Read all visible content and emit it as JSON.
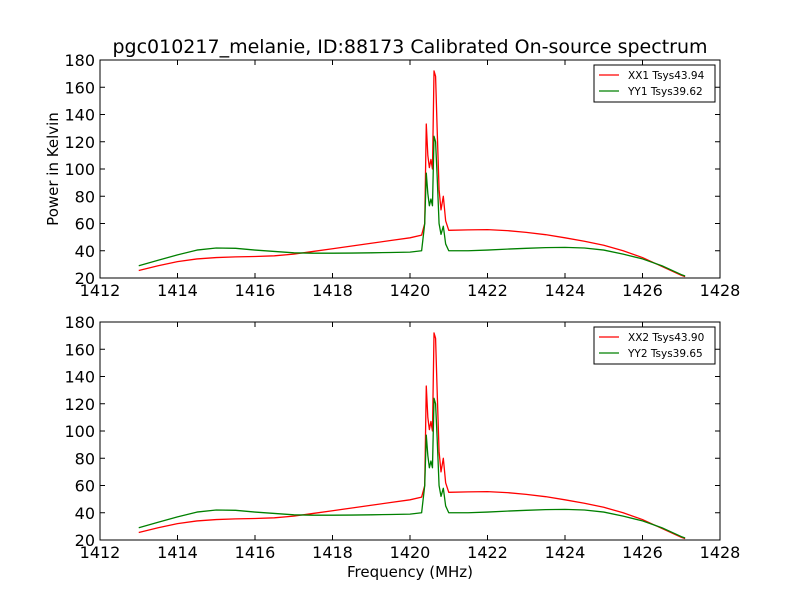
{
  "title": "pgc010217_melanie, ID:88173 Calibrated On-source spectrum",
  "chart_data": [
    {
      "type": "line",
      "xlabel": "",
      "ylabel": "Power in Kelvin",
      "xlim": [
        1412,
        1428
      ],
      "ylim": [
        20,
        180
      ],
      "xticks": [
        1412,
        1414,
        1416,
        1418,
        1420,
        1422,
        1424,
        1426,
        1428
      ],
      "yticks": [
        20,
        40,
        60,
        80,
        100,
        120,
        140,
        160,
        180
      ],
      "legend_position": "top-right",
      "series": [
        {
          "name": "XX1 Tsys43.94",
          "color": "#ff0000",
          "points": [
            [
              1413.0,
              25.5
            ],
            [
              1413.5,
              29.0
            ],
            [
              1414.0,
              32.0
            ],
            [
              1414.5,
              34.0
            ],
            [
              1415.0,
              35.0
            ],
            [
              1415.5,
              35.5
            ],
            [
              1416.0,
              35.8
            ],
            [
              1416.5,
              36.3
            ],
            [
              1417.0,
              37.5
            ],
            [
              1417.5,
              39.5
            ],
            [
              1418.0,
              41.5
            ],
            [
              1418.5,
              43.5
            ],
            [
              1419.0,
              45.5
            ],
            [
              1419.5,
              47.5
            ],
            [
              1420.0,
              49.5
            ],
            [
              1420.3,
              51.5
            ],
            [
              1420.38,
              60
            ],
            [
              1420.42,
              133
            ],
            [
              1420.46,
              110
            ],
            [
              1420.5,
              101
            ],
            [
              1420.54,
              107
            ],
            [
              1420.58,
              100
            ],
            [
              1420.62,
              172
            ],
            [
              1420.66,
              168
            ],
            [
              1420.7,
              130
            ],
            [
              1420.75,
              85
            ],
            [
              1420.8,
              70
            ],
            [
              1420.86,
              80
            ],
            [
              1420.92,
              62
            ],
            [
              1421.0,
              55
            ],
            [
              1421.5,
              55.3
            ],
            [
              1422.0,
              55.5
            ],
            [
              1422.5,
              54.8
            ],
            [
              1423.0,
              53.5
            ],
            [
              1423.5,
              51.8
            ],
            [
              1424.0,
              49.5
            ],
            [
              1424.5,
              47.0
            ],
            [
              1425.0,
              44.0
            ],
            [
              1425.5,
              40.0
            ],
            [
              1426.0,
              35.0
            ],
            [
              1426.5,
              28.5
            ],
            [
              1427.0,
              22.0
            ],
            [
              1427.1,
              21.0
            ]
          ]
        },
        {
          "name": "YY1 Tsys39.62",
          "color": "#008000",
          "points": [
            [
              1413.0,
              29.0
            ],
            [
              1413.5,
              33.0
            ],
            [
              1414.0,
              37.0
            ],
            [
              1414.5,
              40.5
            ],
            [
              1415.0,
              42.0
            ],
            [
              1415.5,
              41.8
            ],
            [
              1416.0,
              40.5
            ],
            [
              1416.5,
              39.5
            ],
            [
              1417.0,
              38.5
            ],
            [
              1417.5,
              38.2
            ],
            [
              1418.0,
              38.2
            ],
            [
              1418.5,
              38.3
            ],
            [
              1419.0,
              38.5
            ],
            [
              1419.5,
              38.7
            ],
            [
              1420.0,
              39.0
            ],
            [
              1420.3,
              40.0
            ],
            [
              1420.38,
              60
            ],
            [
              1420.42,
              97
            ],
            [
              1420.46,
              82
            ],
            [
              1420.5,
              73
            ],
            [
              1420.54,
              78
            ],
            [
              1420.58,
              73
            ],
            [
              1420.62,
              124
            ],
            [
              1420.66,
              120
            ],
            [
              1420.7,
              95
            ],
            [
              1420.75,
              60
            ],
            [
              1420.8,
              52
            ],
            [
              1420.86,
              58
            ],
            [
              1420.92,
              45
            ],
            [
              1421.0,
              40.0
            ],
            [
              1421.5,
              40.0
            ],
            [
              1422.0,
              40.5
            ],
            [
              1422.5,
              41.2
            ],
            [
              1423.0,
              41.8
            ],
            [
              1423.5,
              42.3
            ],
            [
              1424.0,
              42.5
            ],
            [
              1424.5,
              42.0
            ],
            [
              1425.0,
              40.5
            ],
            [
              1425.5,
              37.5
            ],
            [
              1426.0,
              34.0
            ],
            [
              1426.5,
              29.0
            ],
            [
              1427.0,
              22.5
            ],
            [
              1427.1,
              21.5
            ]
          ]
        }
      ]
    },
    {
      "type": "line",
      "xlabel": "Frequency (MHz)",
      "ylabel": "",
      "xlim": [
        1412,
        1428
      ],
      "ylim": [
        20,
        180
      ],
      "xticks": [
        1412,
        1414,
        1416,
        1418,
        1420,
        1422,
        1424,
        1426,
        1428
      ],
      "yticks": [
        20,
        40,
        60,
        80,
        100,
        120,
        140,
        160,
        180
      ],
      "legend_position": "top-right",
      "series": [
        {
          "name": "XX2 Tsys43.90",
          "color": "#ff0000",
          "points": [
            [
              1413.0,
              25.5
            ],
            [
              1413.5,
              29.0
            ],
            [
              1414.0,
              32.0
            ],
            [
              1414.5,
              34.0
            ],
            [
              1415.0,
              35.0
            ],
            [
              1415.5,
              35.5
            ],
            [
              1416.0,
              35.8
            ],
            [
              1416.5,
              36.3
            ],
            [
              1417.0,
              37.5
            ],
            [
              1417.5,
              39.5
            ],
            [
              1418.0,
              41.5
            ],
            [
              1418.5,
              43.5
            ],
            [
              1419.0,
              45.5
            ],
            [
              1419.5,
              47.5
            ],
            [
              1420.0,
              49.5
            ],
            [
              1420.3,
              51.5
            ],
            [
              1420.38,
              60
            ],
            [
              1420.42,
              133
            ],
            [
              1420.46,
              110
            ],
            [
              1420.5,
              101
            ],
            [
              1420.54,
              107
            ],
            [
              1420.58,
              100
            ],
            [
              1420.62,
              172
            ],
            [
              1420.66,
              168
            ],
            [
              1420.7,
              130
            ],
            [
              1420.75,
              85
            ],
            [
              1420.8,
              70
            ],
            [
              1420.86,
              80
            ],
            [
              1420.92,
              62
            ],
            [
              1421.0,
              55
            ],
            [
              1421.5,
              55.3
            ],
            [
              1422.0,
              55.5
            ],
            [
              1422.5,
              54.8
            ],
            [
              1423.0,
              53.5
            ],
            [
              1423.5,
              51.8
            ],
            [
              1424.0,
              49.5
            ],
            [
              1424.5,
              47.0
            ],
            [
              1425.0,
              44.0
            ],
            [
              1425.5,
              40.0
            ],
            [
              1426.0,
              35.0
            ],
            [
              1426.5,
              28.5
            ],
            [
              1427.0,
              22.0
            ],
            [
              1427.1,
              21.0
            ]
          ]
        },
        {
          "name": "YY2 Tsys39.65",
          "color": "#008000",
          "points": [
            [
              1413.0,
              29.0
            ],
            [
              1413.5,
              33.0
            ],
            [
              1414.0,
              37.0
            ],
            [
              1414.5,
              40.5
            ],
            [
              1415.0,
              42.0
            ],
            [
              1415.5,
              41.8
            ],
            [
              1416.0,
              40.5
            ],
            [
              1416.5,
              39.5
            ],
            [
              1417.0,
              38.5
            ],
            [
              1417.5,
              38.2
            ],
            [
              1418.0,
              38.2
            ],
            [
              1418.5,
              38.3
            ],
            [
              1419.0,
              38.5
            ],
            [
              1419.5,
              38.7
            ],
            [
              1420.0,
              39.0
            ],
            [
              1420.3,
              40.0
            ],
            [
              1420.38,
              60
            ],
            [
              1420.42,
              97
            ],
            [
              1420.46,
              82
            ],
            [
              1420.5,
              73
            ],
            [
              1420.54,
              78
            ],
            [
              1420.58,
              73
            ],
            [
              1420.62,
              124
            ],
            [
              1420.66,
              120
            ],
            [
              1420.7,
              95
            ],
            [
              1420.75,
              60
            ],
            [
              1420.8,
              52
            ],
            [
              1420.86,
              58
            ],
            [
              1420.92,
              45
            ],
            [
              1421.0,
              40.0
            ],
            [
              1421.5,
              40.0
            ],
            [
              1422.0,
              40.5
            ],
            [
              1422.5,
              41.2
            ],
            [
              1423.0,
              41.8
            ],
            [
              1423.5,
              42.3
            ],
            [
              1424.0,
              42.5
            ],
            [
              1424.5,
              42.0
            ],
            [
              1425.0,
              40.5
            ],
            [
              1425.5,
              37.5
            ],
            [
              1426.0,
              34.0
            ],
            [
              1426.5,
              29.0
            ],
            [
              1427.0,
              22.5
            ],
            [
              1427.1,
              21.5
            ]
          ]
        }
      ]
    }
  ]
}
